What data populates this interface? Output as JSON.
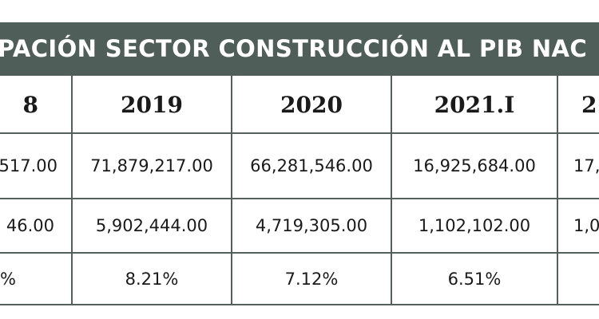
{
  "table": {
    "title": "CIPACIÓN SECTOR CONSTRUCCIÓN AL PIB NAC",
    "headers": [
      "8",
      "2019",
      "2020",
      "2021.I",
      "2"
    ],
    "rows": [
      [
        "517.00",
        "71,879,217.00",
        "66,281,546.00",
        "16,925,684.00",
        "17,"
      ],
      [
        "46.00",
        "5,902,444.00",
        "4,719,305.00",
        "1,102,102.00",
        "1,0"
      ],
      [
        "%",
        "8.21%",
        "7.12%",
        "6.51%",
        ""
      ]
    ]
  }
}
